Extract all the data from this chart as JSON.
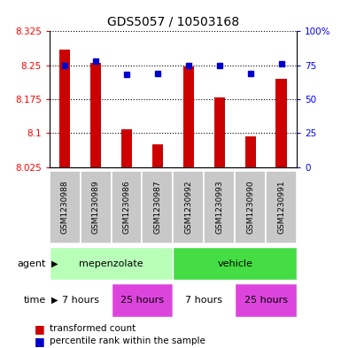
{
  "title": "GDS5057 / 10503168",
  "samples": [
    "GSM1230988",
    "GSM1230989",
    "GSM1230986",
    "GSM1230987",
    "GSM1230992",
    "GSM1230993",
    "GSM1230990",
    "GSM1230991"
  ],
  "red_values": [
    8.285,
    8.255,
    8.108,
    8.075,
    8.248,
    8.178,
    8.092,
    8.22
  ],
  "blue_values": [
    75,
    78,
    68,
    69,
    75,
    75,
    69,
    76
  ],
  "ylim_left": [
    8.025,
    8.325
  ],
  "ylim_right": [
    0,
    100
  ],
  "yticks_left": [
    8.025,
    8.1,
    8.175,
    8.25,
    8.325
  ],
  "yticks_right": [
    0,
    25,
    50,
    75,
    100
  ],
  "bar_color": "#cc0000",
  "dot_color": "#0000cc",
  "sample_bg_color": "#c8c8c8",
  "agent_left_color": "#b8ffb8",
  "agent_right_color": "#44dd44",
  "time_white_color": "#ffffff",
  "time_pink_color": "#dd44dd",
  "legend_red": "transformed count",
  "legend_blue": "percentile rank within the sample"
}
